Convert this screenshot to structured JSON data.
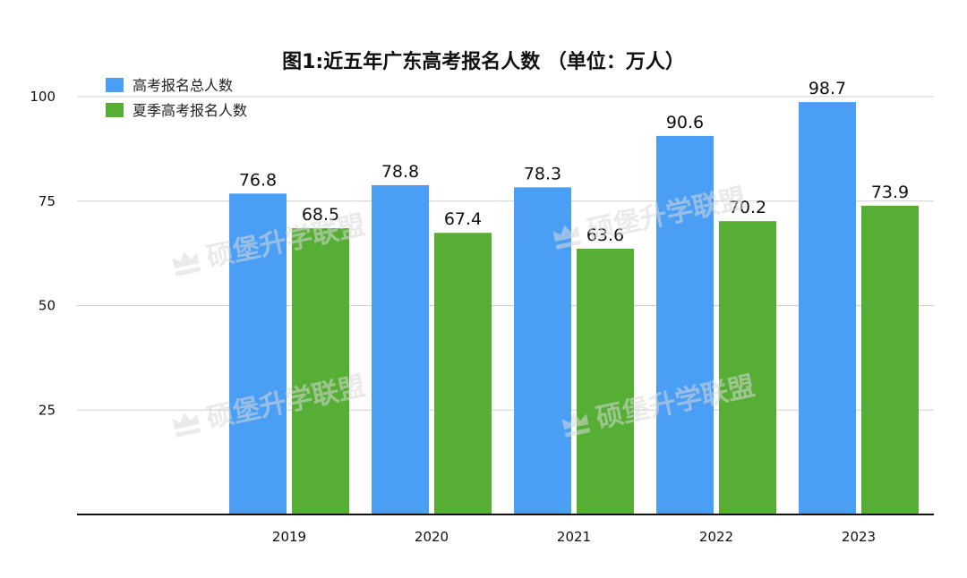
{
  "chart_data": {
    "type": "bar",
    "title": "图1:近五年广东高考报名人数 （单位：万人）",
    "categories": [
      "2019",
      "2020",
      "2021",
      "2022",
      "2023"
    ],
    "series": [
      {
        "name": "高考报名总人数",
        "color": "#4a9ff5",
        "values": [
          76.8,
          78.8,
          78.3,
          90.6,
          98.7
        ]
      },
      {
        "name": "夏季高考报名人数",
        "color": "#56ae35",
        "values": [
          68.5,
          67.4,
          63.6,
          70.2,
          73.9
        ]
      }
    ],
    "ylim": [
      0,
      100
    ],
    "yticks": [
      25,
      50,
      75,
      100
    ],
    "xlabel": "",
    "ylabel": "",
    "grid": true,
    "legend_position": "top-left"
  },
  "watermark": {
    "text": "硕堡升学联盟"
  }
}
